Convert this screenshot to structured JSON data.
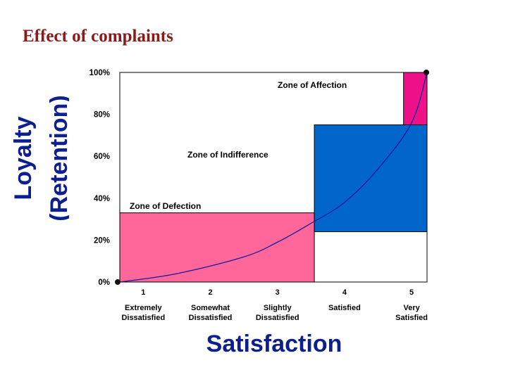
{
  "slide": {
    "title": "Effect of complaints"
  },
  "chart_data": {
    "type": "area",
    "ylabel": [
      "Loyalty",
      "(Retention)"
    ],
    "xlabel": "Satisfaction",
    "xlim": [
      0.65,
      5.23
    ],
    "ylim": [
      0,
      100
    ],
    "y_ticks": [
      "100%",
      "80%",
      "60%",
      "40%",
      "20%",
      "0%"
    ],
    "y_tick_values": [
      100,
      80,
      60,
      40,
      20,
      0
    ],
    "x_ticks": [
      {
        "value": 1,
        "number": "1",
        "label": [
          "Extremely",
          "Dissatisfied"
        ]
      },
      {
        "value": 2,
        "number": "2",
        "label": [
          "Somewhat",
          "Dissatisfied"
        ]
      },
      {
        "value": 3,
        "number": "3",
        "label": [
          "Slightly",
          "Dissatisfied"
        ]
      },
      {
        "value": 4,
        "number": "4",
        "label": [
          "Satisfied"
        ]
      },
      {
        "value": 5,
        "number": "5",
        "label": [
          "Very",
          "Satisfied"
        ]
      }
    ],
    "zones": [
      {
        "name": "Zone of Defection",
        "x_range": [
          0.65,
          3.55
        ],
        "y_range": [
          0,
          33
        ],
        "color": "#ff6699"
      },
      {
        "name": "Zone of Indifference",
        "x_range": [
          3.55,
          5.23
        ],
        "y_range": [
          24,
          75
        ],
        "color": "#0066cc"
      },
      {
        "name": "Zone of Affection",
        "x_range": [
          4.88,
          5.23
        ],
        "y_range": [
          75,
          100
        ],
        "color": "#ee1188"
      }
    ],
    "zone_labels": {
      "defection": "Zone of Defection",
      "indifference": "Zone of Indifference",
      "affection": "Zone of Affection"
    },
    "curve": {
      "color": "#1a1a99",
      "points": [
        [
          0.65,
          0
        ],
        [
          1.5,
          4
        ],
        [
          2.5,
          12
        ],
        [
          3.0,
          19
        ],
        [
          3.5,
          28
        ],
        [
          4.0,
          38
        ],
        [
          4.5,
          54
        ],
        [
          5.0,
          76
        ],
        [
          5.23,
          100
        ]
      ]
    }
  }
}
